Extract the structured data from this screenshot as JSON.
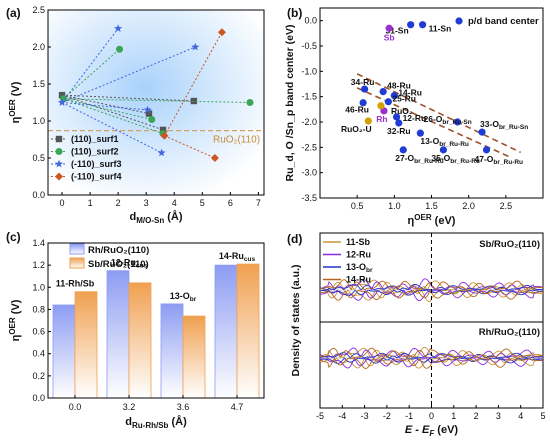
{
  "panels": {
    "a": {
      "label": "(a)",
      "chart_data": {
        "type": "scatter",
        "xlabel": "d",
        "xlabel_sub": "M/O-Sn",
        "xlabel_unit": " (Å)",
        "ylabel": "η",
        "ylabel_sup": "OER",
        "ylabel_unit": " (V)",
        "xlim": [
          -0.5,
          7.2
        ],
        "ylim": [
          0.0,
          2.5
        ],
        "xticks": [
          0,
          1,
          2,
          3,
          4,
          5,
          6,
          7
        ],
        "yticks": [
          0.0,
          0.5,
          1.0,
          1.5,
          2.0,
          2.5
        ],
        "reference": {
          "value": 0.87,
          "label": "RuO₂(110)"
        },
        "series": [
          {
            "name": "(110)_surf1",
            "color": "#555555",
            "marker": "square",
            "points": [
              [
                0.0,
                1.35
              ],
              [
                3.1,
                1.1
              ],
              [
                4.7,
                1.27
              ],
              [
                3.6,
                0.88
              ]
            ]
          },
          {
            "name": "(110)_surf2",
            "color": "#3aa655",
            "marker": "circle",
            "points": [
              [
                0.05,
                1.3
              ],
              [
                2.05,
                1.97
              ],
              [
                3.2,
                1.02
              ],
              [
                6.7,
                1.25
              ],
              [
                3.6,
                0.83
              ]
            ]
          },
          {
            "name": "(-110)_surf3",
            "color": "#4466dd",
            "marker": "star",
            "points": [
              [
                0.0,
                1.25
              ],
              [
                2.0,
                2.25
              ],
              [
                3.05,
                1.15
              ],
              [
                4.75,
                2.0
              ],
              [
                3.55,
                0.57
              ]
            ]
          },
          {
            "name": "(-110)_surf4",
            "color": "#cc5522",
            "marker": "diamond",
            "points": [
              [
                3.65,
                0.8
              ],
              [
                5.45,
                0.5
              ],
              [
                5.7,
                2.2
              ]
            ]
          }
        ]
      }
    },
    "b": {
      "label": "(b)",
      "chart_data": {
        "type": "scatter",
        "xlabel": "η",
        "xlabel_sup": "OER",
        "xlabel_unit": " (eV)",
        "ylabel": "Ru_d, O /Sn_p band center (eV)",
        "xlim": [
          0.0,
          3.0
        ],
        "ylim": [
          -3.5,
          0.25
        ],
        "xticks": [
          0.5,
          1.0,
          1.5,
          2.0,
          2.5
        ],
        "yticks": [
          -3.5,
          -3.0,
          -2.5,
          -2.0,
          -1.5,
          -1.0,
          -0.5,
          0.0
        ],
        "legend": "p/d band center",
        "fit_line": {
          "x": [
            0.5,
            2.7
          ],
          "y": [
            -1.05,
            -2.6
          ]
        },
        "points": [
          {
            "label": "31-Sn",
            "x": 1.22,
            "y": -0.08,
            "color": "#1f3dd6"
          },
          {
            "label": "11-Sn",
            "x": 1.38,
            "y": -0.08,
            "color": "#1f3dd6"
          },
          {
            "label": "Sb",
            "x": 0.93,
            "y": -0.15,
            "color": "#9b30d0"
          },
          {
            "label": "34-Ru",
            "x": 0.6,
            "y": -1.35,
            "color": "#1f3dd6"
          },
          {
            "label": "48-Ru",
            "x": 0.85,
            "y": -1.4,
            "color": "#1f3dd6"
          },
          {
            "label": "14-Ru",
            "x": 1.0,
            "y": -1.48,
            "color": "#1f3dd6"
          },
          {
            "label": "25-Ru",
            "x": 0.92,
            "y": -1.6,
            "color": "#1f3dd6"
          },
          {
            "label": "Rh",
            "x": 0.86,
            "y": -1.78,
            "color": "#9b30d0"
          },
          {
            "label": "RuO₂",
            "x": 0.82,
            "y": -1.68,
            "color": "#d4a000"
          },
          {
            "label": "46-Ru",
            "x": 0.58,
            "y": -1.62,
            "color": "#1f3dd6"
          },
          {
            "label": "12-Ru",
            "x": 1.03,
            "y": -1.9,
            "color": "#1f3dd6"
          },
          {
            "label": "RuO₂-U",
            "x": 0.65,
            "y": -1.98,
            "color": "#d4a000"
          },
          {
            "label": "32-Ru",
            "x": 1.06,
            "y": -2.02,
            "color": "#1f3dd6"
          },
          {
            "label": "26-O",
            "sub": "br_Ru-Sn",
            "x": 1.85,
            "y": -2.0,
            "color": "#1f3dd6"
          },
          {
            "label": "13-O",
            "sub": "br_Ru-Ru",
            "x": 1.35,
            "y": -2.22,
            "color": "#1f3dd6"
          },
          {
            "label": "33-O",
            "sub": "br_Ru-Sn",
            "x": 2.18,
            "y": -2.2,
            "color": "#1f3dd6"
          },
          {
            "label": "27-O",
            "sub": "br_Ru-Ru",
            "x": 1.12,
            "y": -2.55,
            "color": "#1f3dd6"
          },
          {
            "label": "35-O",
            "sub": "br_Ru-Ru",
            "x": 1.66,
            "y": -2.55,
            "color": "#1f3dd6"
          },
          {
            "label": "47-O",
            "sub": "br_Ru-Ru",
            "x": 2.24,
            "y": -2.55,
            "color": "#1f3dd6"
          }
        ]
      }
    },
    "c": {
      "label": "(c)",
      "chart_data": {
        "type": "bar",
        "xlabel": "d",
        "xlabel_sub": "Ru-Rh/Sb",
        "xlabel_unit": " (Å)",
        "ylabel": "η",
        "ylabel_sup": "OER",
        "ylabel_unit": " (V)",
        "categories": [
          "0.0",
          "3.2",
          "3.6",
          "4.7"
        ],
        "ylim": [
          0.0,
          1.4
        ],
        "yticks": [
          0.0,
          0.2,
          0.4,
          0.6,
          0.8,
          1.0,
          1.2,
          1.4
        ],
        "series": [
          {
            "name": "Rh/RuO₂(110)",
            "color": "#8d9cf2",
            "values": [
              0.84,
              1.15,
              0.85,
              1.2
            ]
          },
          {
            "name": "Sb/RuO₂(110)",
            "color": "#f0a050",
            "values": [
              0.96,
              1.04,
              0.74,
              1.21
            ]
          }
        ],
        "annotations": [
          {
            "text": "11-Rh/Sb",
            "sub": ""
          },
          {
            "text": "12-Ru",
            "sub": "cus"
          },
          {
            "text": "13-O",
            "sub": "br"
          },
          {
            "text": "14-Ru",
            "sub": "cus"
          }
        ]
      }
    },
    "d": {
      "label": "(d)",
      "chart_data": {
        "type": "line",
        "xlabel": "E - E",
        "xlabel_sub": "F",
        "xlabel_unit": " (eV)",
        "ylabel": "Density of states (a.u.)",
        "xlim": [
          -5,
          5
        ],
        "xticks": [
          -5,
          -4,
          -3,
          -2,
          -1,
          0,
          1,
          2,
          3,
          4,
          5
        ],
        "top_title": "Sb/RuO₂(110)",
        "bottom_title": "Rh/RuO₂(110)",
        "series": [
          {
            "name": "11-Sb",
            "color": "#c8963a"
          },
          {
            "name": "12-Ru",
            "color": "#8a2be2"
          },
          {
            "name": "13-O",
            "sub": "br",
            "color": "#2233cc"
          },
          {
            "name": "14-Ru",
            "color": "#b5651d"
          }
        ]
      }
    }
  }
}
